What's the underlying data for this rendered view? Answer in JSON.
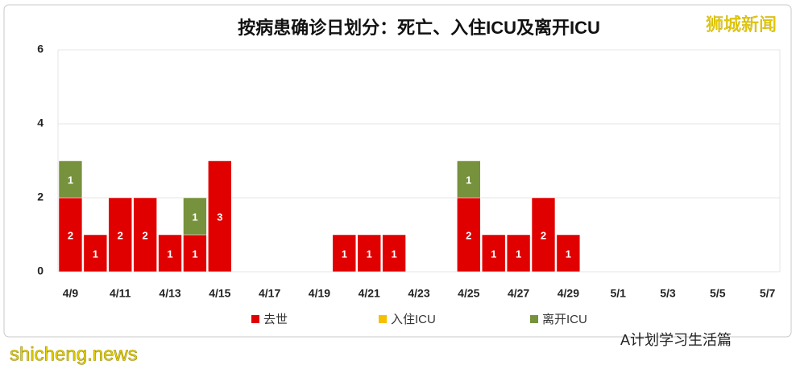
{
  "chart_data": {
    "type": "bar",
    "stacked": true,
    "title": "按病患确诊日划分：死亡、入住ICU及离开ICU",
    "categories": [
      "4/9",
      null,
      "4/11",
      null,
      "4/13",
      null,
      "4/15",
      null,
      "4/17",
      null,
      "4/19",
      null,
      "4/21",
      null,
      "4/23",
      null,
      "4/25",
      null,
      "4/27",
      null,
      "4/29",
      null,
      "5/1",
      null,
      "5/3",
      null,
      "5/5",
      null,
      "5/7"
    ],
    "series": [
      {
        "name": "去世",
        "color": "#e00000",
        "values": [
          2,
          1,
          2,
          2,
          1,
          1,
          3,
          0,
          0,
          0,
          0,
          1,
          1,
          1,
          0,
          0,
          2,
          1,
          1,
          2,
          1,
          0,
          0,
          0,
          0,
          0,
          0,
          0,
          0
        ]
      },
      {
        "name": "入住ICU",
        "color": "#f5c000",
        "values": [
          0,
          0,
          0,
          0,
          0,
          0,
          0,
          0,
          0,
          0,
          0,
          0,
          0,
          0,
          0,
          0,
          0,
          0,
          0,
          0,
          0,
          0,
          0,
          0,
          0,
          0,
          0,
          0,
          0
        ]
      },
      {
        "name": "离开ICU",
        "color": "#76923c",
        "values": [
          1,
          0,
          0,
          0,
          0,
          1,
          0,
          0,
          0,
          0,
          0,
          0,
          0,
          0,
          0,
          0,
          1,
          0,
          0,
          0,
          0,
          0,
          0,
          0,
          0,
          0,
          0,
          0,
          0
        ]
      }
    ],
    "ylim": [
      0,
      6
    ],
    "yticks": [
      0,
      2,
      4,
      6
    ],
    "grid": true,
    "legend": "bottom",
    "watermarks": [
      "狮城新闻",
      "shicheng.news",
      "A计划学习生活篇"
    ]
  }
}
